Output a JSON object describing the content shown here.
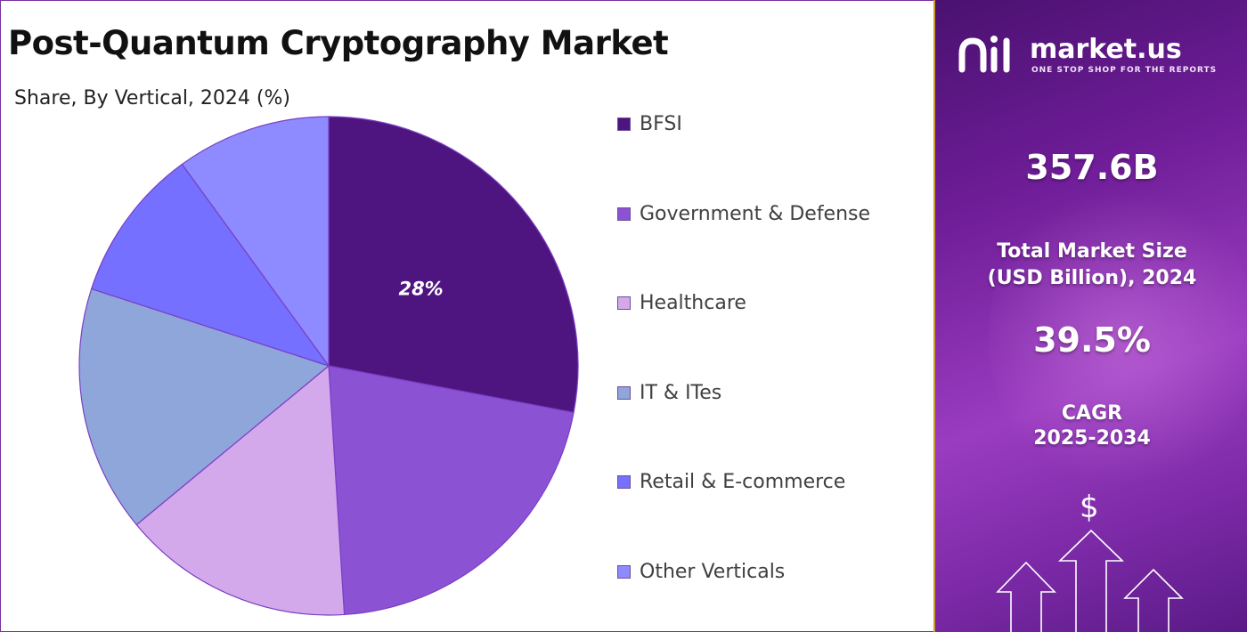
{
  "title": "Post-Quantum Cryptography Market",
  "subtitle": "Share, By Vertical, 2024 (%)",
  "chart_data": {
    "type": "pie",
    "title": "Post-Quantum Cryptography Market",
    "subtitle": "Share, By Vertical, 2024 (%)",
    "slices": [
      {
        "name": "BFSI",
        "value": 28,
        "color": "#4e1580",
        "label": "28%"
      },
      {
        "name": "Government & Defense",
        "value": 21,
        "color": "#8b52d4",
        "label": ""
      },
      {
        "name": "Healthcare",
        "value": 15,
        "color": "#d3a9ec",
        "label": ""
      },
      {
        "name": "IT & ITes",
        "value": 16,
        "color": "#8fa6db",
        "label": ""
      },
      {
        "name": "Retail & E-commerce",
        "value": 10,
        "color": "#7570ff",
        "label": ""
      },
      {
        "name": "Other Verticals",
        "value": 10,
        "color": "#8d8bff",
        "label": ""
      }
    ],
    "legend_position": "right"
  },
  "brand": {
    "name": "market.us",
    "tagline": "ONE STOP SHOP FOR THE REPORTS"
  },
  "stats": {
    "market_size_value": "357.6B",
    "market_size_label_1": "Total Market Size",
    "market_size_label_2": "(USD Billion), 2024",
    "cagr_value": "39.5%",
    "cagr_label_1": "CAGR",
    "cagr_label_2": "2025-2034"
  },
  "decor": {
    "dollar_symbol": "$"
  },
  "colors": {
    "accent": "#7a2fa0",
    "panel_border": "#c89b2e"
  }
}
